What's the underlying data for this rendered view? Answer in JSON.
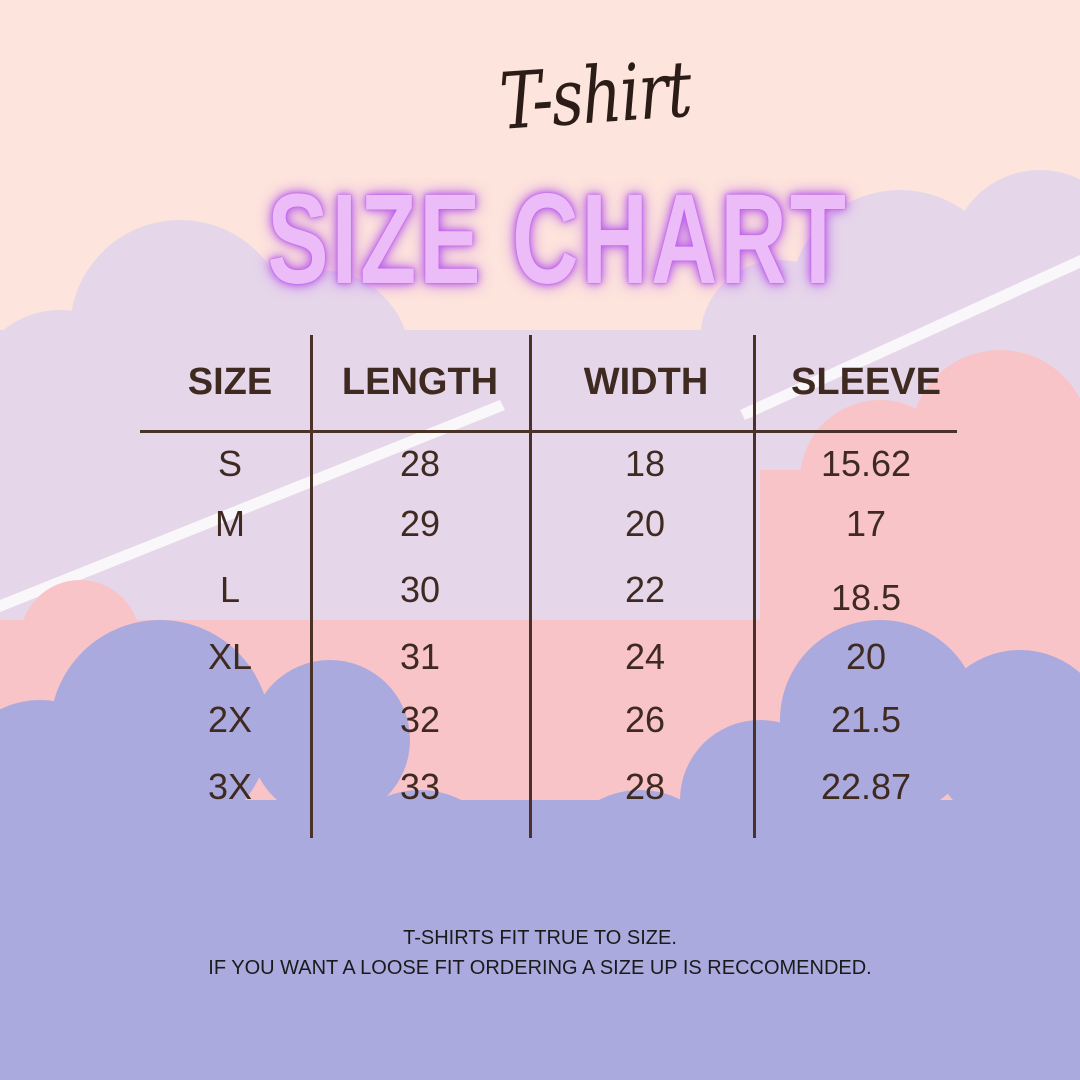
{
  "title": {
    "script": "T-shirt",
    "main": "SIZE CHART"
  },
  "colors": {
    "background_top": "#fde4dc",
    "cloud_lavender": "#e6d6ea",
    "cloud_pink": "#f9c4c8",
    "cloud_blue": "#aaaade",
    "title_glow": "#ecbcf8",
    "text": "#3f2a22"
  },
  "table": {
    "headers": [
      "SIZE",
      "LENGTH",
      "WIDTH",
      "SLEEVE"
    ],
    "rows": [
      [
        "S",
        "28",
        "18",
        "15.62"
      ],
      [
        "M",
        "29",
        "20",
        "17"
      ],
      [
        "L",
        "30",
        "22",
        "18.5"
      ],
      [
        "XL",
        "31",
        "24",
        "20"
      ],
      [
        "2X",
        "32",
        "26",
        "21.5"
      ],
      [
        "3X",
        "33",
        "28",
        "22.87"
      ]
    ]
  },
  "notes": [
    "T-SHIRTS FIT TRUE TO SIZE.",
    "IF YOU WANT A LOOSE FIT ORDERING A SIZE UP IS RECCOMENDED."
  ]
}
